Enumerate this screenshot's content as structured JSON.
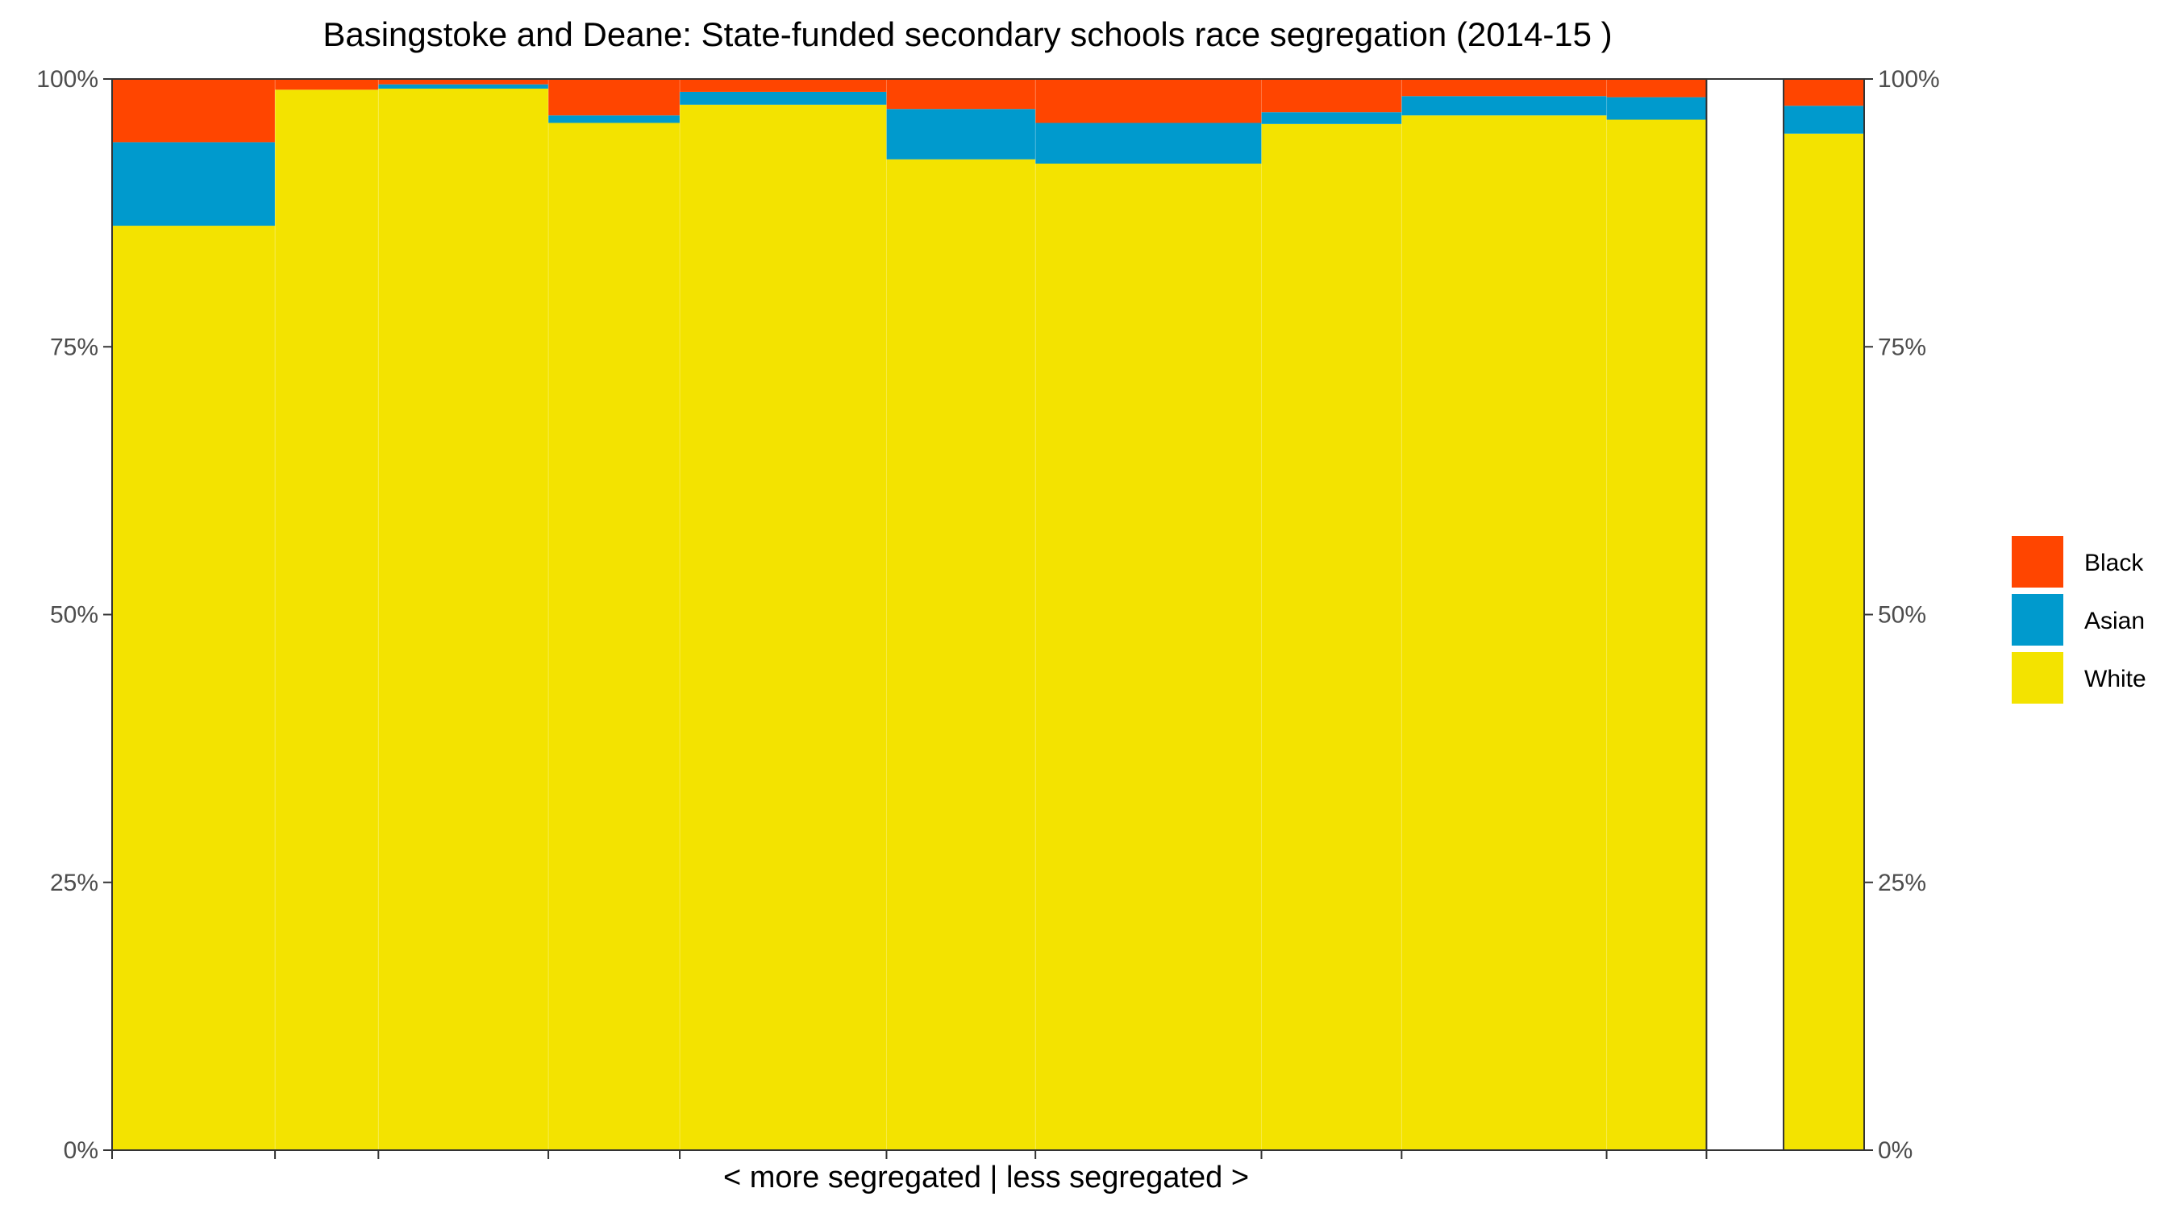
{
  "colors": {
    "Black": "#ff4500",
    "Asian": "#009acd",
    "White": "#f3e300",
    "frame": "#333333"
  },
  "chart_data": {
    "type": "bar",
    "subtype": "stacked-100-percent-variable-width",
    "title": "Basingstoke and Deane: State-funded secondary schools race segregation (2014-15 )",
    "xlabel": "< more segregated | less segregated >",
    "ylabel": "",
    "ylim": [
      0,
      100
    ],
    "y_ticks": [
      "0%",
      "25%",
      "50%",
      "75%",
      "100%"
    ],
    "y_axis_both_sides": true,
    "grid": false,
    "legend_position": "right",
    "legend": [
      "Black",
      "Asian",
      "White"
    ],
    "stack_order_bottom_to_top": [
      "White",
      "Asian",
      "Black"
    ],
    "x_breaks": [
      0,
      0.093,
      0.152,
      0.249,
      0.324,
      0.442,
      0.527,
      0.656,
      0.736,
      0.853,
      0.91,
      0.954,
      1.0
    ],
    "series": [
      {
        "name": "White",
        "values": [
          86.3,
          99.0,
          99.1,
          95.9,
          97.6,
          92.5,
          92.1,
          95.8,
          96.6,
          96.2,
          0,
          94.9
        ]
      },
      {
        "name": "Asian",
        "values": [
          7.8,
          0.0,
          0.4,
          0.7,
          1.2,
          4.7,
          3.8,
          1.1,
          1.8,
          2.1,
          0,
          2.6
        ]
      },
      {
        "name": "Black",
        "values": [
          5.9,
          1.0,
          0.5,
          3.4,
          1.2,
          2.8,
          4.1,
          3.1,
          1.6,
          1.7,
          0,
          2.5
        ]
      }
    ],
    "empty_groups": [
      10
    ]
  }
}
